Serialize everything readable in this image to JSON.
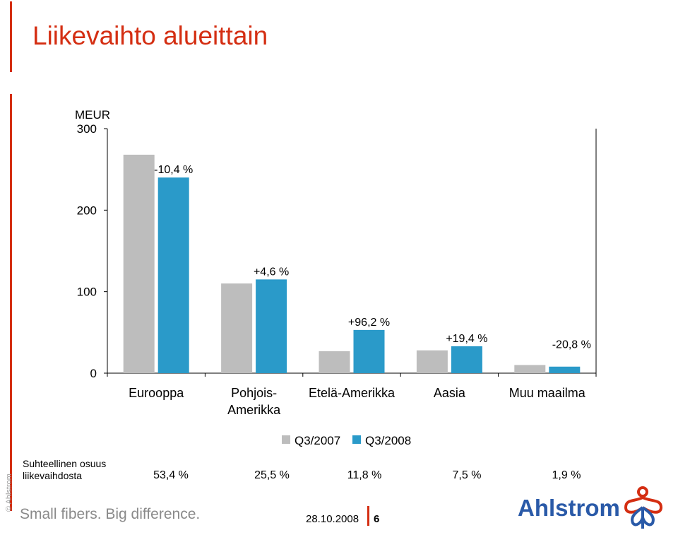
{
  "slide": {
    "title": "Liikevaihto alueittain",
    "copyright": "© Ahlstrom",
    "tagline": "Small fibers. Big difference.",
    "date": "28.10.2008",
    "page_number": "6",
    "logo_text": "Ahlstrom"
  },
  "colors": {
    "accent": "#d42e12",
    "q3_2007": "#bdbdbd",
    "q3_2008": "#2a9ac9",
    "logo_blue": "#2a5aa8"
  },
  "chart_data": {
    "type": "bar",
    "ylabel": "MEUR",
    "ylim": [
      0,
      300
    ],
    "yticks": [
      "0",
      "100",
      "200",
      "300"
    ],
    "categories": [
      "Eurooppa",
      "Pohjois-Amerikka",
      "Etelä-Amerikka",
      "Aasia",
      "Muu maailma"
    ],
    "category_lines": [
      [
        "Eurooppa"
      ],
      [
        "Pohjois-",
        "Amerikka"
      ],
      [
        "Etelä-Amerikka"
      ],
      [
        "Aasia"
      ],
      [
        "Muu maailma"
      ]
    ],
    "series": [
      {
        "name": "Q3/2007",
        "values": [
          268,
          110,
          27,
          28,
          10
        ]
      },
      {
        "name": "Q3/2008",
        "values": [
          240,
          115,
          53,
          33,
          8
        ]
      }
    ],
    "change_labels": [
      "-10,4 %",
      "+4,6 %",
      "+96,2 %",
      "+19,4 %",
      "-20,8 %"
    ],
    "grid": false,
    "legend": "bottom"
  },
  "share": {
    "label_line1": "Suhteellinen osuus",
    "label_line2": "liikevaihdosta",
    "values": [
      "53,4 %",
      "25,5 %",
      "11,8 %",
      "7,5 %",
      "1,9 %"
    ]
  }
}
